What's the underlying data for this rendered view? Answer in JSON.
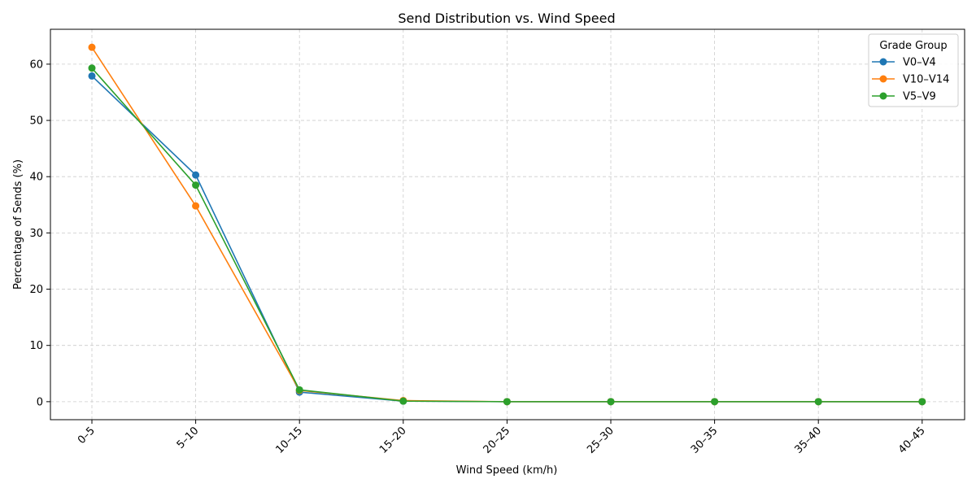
{
  "chart_data": {
    "type": "line",
    "title": "Send Distribution vs. Wind Speed",
    "xlabel": "Wind Speed (km/h)",
    "ylabel": "Percentage of Sends (%)",
    "categories": [
      "0–5",
      "5–10",
      "10–15",
      "15–20",
      "20–25",
      "25–30",
      "30–35",
      "35–40",
      "40–45"
    ],
    "yticks": [
      0,
      10,
      20,
      30,
      40,
      50,
      60
    ],
    "ylim": [
      -3.2,
      66.2
    ],
    "grid": true,
    "legend_title": "Grade Group",
    "legend_position": "top-right",
    "series": [
      {
        "name": "V0–V4",
        "color": "#1f77b4",
        "values": [
          57.9,
          40.3,
          1.7,
          0.1,
          0.0,
          0.0,
          0.0,
          0.0,
          0.0
        ]
      },
      {
        "name": "V10–V14",
        "color": "#ff7f0e",
        "values": [
          63.0,
          34.8,
          2.0,
          0.2,
          0.0,
          0.0,
          0.0,
          0.0,
          0.0
        ]
      },
      {
        "name": "V5–V9",
        "color": "#2ca02c",
        "values": [
          59.3,
          38.5,
          2.1,
          0.1,
          0.0,
          0.0,
          0.0,
          0.0,
          0.0
        ]
      }
    ]
  }
}
